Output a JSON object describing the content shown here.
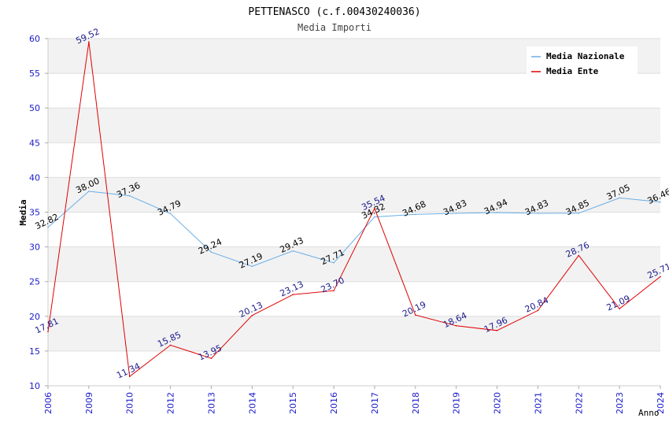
{
  "chart_data": {
    "type": "line",
    "title": "PETTENASCO (c.f.00430240036)",
    "subtitle": "Media Importi",
    "xlabel": "Anno",
    "ylabel": "Media",
    "ylim": [
      10,
      60
    ],
    "yticks": [
      "10",
      "15",
      "20",
      "25",
      "30",
      "35",
      "40",
      "45",
      "50",
      "55",
      "60"
    ],
    "categories": [
      "2006",
      "2009",
      "2010",
      "2012",
      "2013",
      "2014",
      "2015",
      "2016",
      "2017",
      "2018",
      "2019",
      "2020",
      "2021",
      "2022",
      "2023",
      "2024"
    ],
    "legend_position": "top-right",
    "grid": true,
    "series": [
      {
        "name": "Media Nazionale",
        "color": "#6aaee6",
        "label_color": "#000000",
        "values": [
          32.82,
          38.0,
          37.36,
          34.79,
          29.24,
          27.19,
          29.43,
          27.71,
          34.32,
          34.68,
          34.83,
          34.94,
          34.83,
          34.85,
          37.05,
          36.46
        ],
        "labels": [
          "32.82",
          "38.00",
          "37.36",
          "34.79",
          "29.24",
          "27.19",
          "29.43",
          "27.71",
          "34.32",
          "34.68",
          "34.83",
          "34.94",
          "34.83",
          "34.85",
          "37.05",
          "36.46"
        ]
      },
      {
        "name": "Media Ente",
        "color": "#e00000",
        "label_color": "#1a1a8c",
        "values": [
          17.81,
          59.52,
          11.34,
          15.85,
          13.95,
          20.13,
          23.13,
          23.7,
          35.54,
          20.19,
          18.64,
          17.96,
          20.84,
          28.76,
          21.09,
          25.71
        ],
        "labels": [
          "17.81",
          "59.52",
          "11.34",
          "15.85",
          "13.95",
          "20.13",
          "23.13",
          "23.70",
          "35.54",
          "20.19",
          "18.64",
          "17.96",
          "20.84",
          "28.76",
          "21.09",
          "25.71"
        ]
      }
    ]
  }
}
